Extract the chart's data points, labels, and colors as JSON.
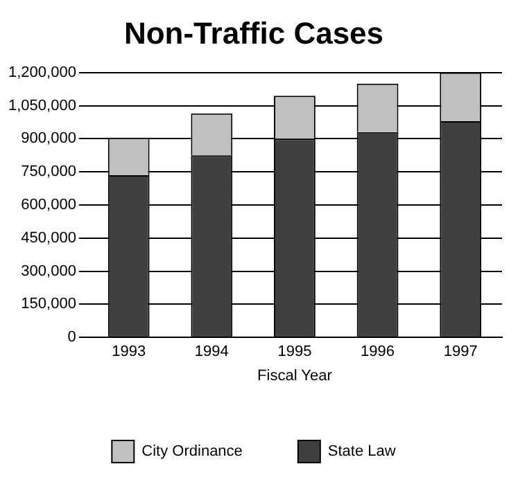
{
  "chart_data": {
    "type": "bar",
    "title": "Non-Traffic Cases",
    "xlabel": "Fiscal Year",
    "categories": [
      "1993",
      "1994",
      "1995",
      "1996",
      "1997"
    ],
    "stacked": true,
    "series": [
      {
        "name": "State Law",
        "color": "#404040",
        "values": [
          735000,
          825000,
          900000,
          930000,
          980000
        ]
      },
      {
        "name": "City Ordinance",
        "color": "#c0c0c0",
        "values": [
          170000,
          190000,
          195000,
          220000,
          220000
        ]
      }
    ],
    "ylim": [
      0,
      1200000
    ],
    "yticks": [
      {
        "value": 0,
        "label": "0"
      },
      {
        "value": 150000,
        "label": "150,000"
      },
      {
        "value": 300000,
        "label": "300,000"
      },
      {
        "value": 450000,
        "label": "450,000"
      },
      {
        "value": 600000,
        "label": "600,000"
      },
      {
        "value": 750000,
        "label": "750,000"
      },
      {
        "value": 900000,
        "label": "900,000"
      },
      {
        "value": 1050000,
        "label": "1,050,000"
      },
      {
        "value": 1200000,
        "label": "1,200,000"
      }
    ],
    "grid": "y",
    "legend": "bottom"
  }
}
